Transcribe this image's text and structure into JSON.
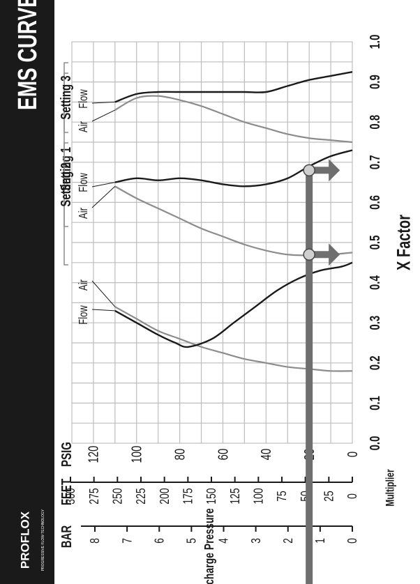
{
  "header": {
    "title": "EMS CURVE",
    "logo": "PROFLOX",
    "logo_tagline": "PROGRESSIVE FLOW TECHNOLOGY"
  },
  "colors": {
    "header_bg": "#1a1a1a",
    "flow_line": "#1a1a1a",
    "air_line": "#8c8c8c",
    "indicator": "#6f6f6f",
    "grid": "#bdbdbd",
    "marker_fill": "#cfcfcf"
  },
  "labels": {
    "x_axis": "X Factor",
    "y_axis": "Discharge Pressure",
    "multiplier": "Multiplier",
    "bar": "BAR",
    "feet": "FEET",
    "psig": "PSIG"
  },
  "chart_data": {
    "type": "line",
    "title": "EMS CURVE",
    "xlabel": "X Factor",
    "ylabel": "Discharge Pressure",
    "xlim": [
      0,
      1.0
    ],
    "ylim": [
      0,
      120
    ],
    "grid": true,
    "x_ticks": [
      "0.0",
      "0.1",
      "0.2",
      "0.3",
      "0.4",
      "0.5",
      "0.6",
      "0.7",
      "0.8",
      "0.9",
      "1.0"
    ],
    "psig_ticks": [
      "0",
      "20",
      "40",
      "60",
      "80",
      "100",
      "120"
    ],
    "feet_ticks": [
      "0",
      "25",
      "50",
      "75",
      "100",
      "125",
      "150",
      "175",
      "200",
      "225",
      "250",
      "275",
      "300"
    ],
    "bar_ticks": [
      "0",
      "1",
      "2",
      "3",
      "4",
      "5",
      "6",
      "7",
      "8"
    ],
    "settings": [
      {
        "name": "Setting 1",
        "flow_label": "Flow",
        "air_label": "Air",
        "flow": [
          [
            0.33,
            110
          ],
          [
            0.3,
            100
          ],
          [
            0.27,
            90
          ],
          [
            0.25,
            82
          ],
          [
            0.24,
            76
          ],
          [
            0.26,
            65
          ],
          [
            0.3,
            55
          ],
          [
            0.34,
            45
          ],
          [
            0.38,
            35
          ],
          [
            0.41,
            25
          ],
          [
            0.43,
            15
          ],
          [
            0.44,
            5
          ],
          [
            0.45,
            0
          ]
        ],
        "air": [
          [
            0.34,
            110
          ],
          [
            0.31,
            100
          ],
          [
            0.28,
            90
          ],
          [
            0.26,
            80
          ],
          [
            0.24,
            70
          ],
          [
            0.225,
            60
          ],
          [
            0.21,
            50
          ],
          [
            0.2,
            40
          ],
          [
            0.19,
            30
          ],
          [
            0.185,
            20
          ],
          [
            0.18,
            10
          ],
          [
            0.18,
            0
          ]
        ]
      },
      {
        "name": "Setting 2",
        "flow_label": "Flow",
        "air_label": "Air",
        "flow": [
          [
            0.65,
            110
          ],
          [
            0.66,
            100
          ],
          [
            0.655,
            90
          ],
          [
            0.66,
            80
          ],
          [
            0.655,
            70
          ],
          [
            0.645,
            60
          ],
          [
            0.64,
            50
          ],
          [
            0.645,
            40
          ],
          [
            0.66,
            30
          ],
          [
            0.69,
            20
          ],
          [
            0.715,
            10
          ],
          [
            0.73,
            0
          ]
        ],
        "air": [
          [
            0.64,
            110
          ],
          [
            0.61,
            100
          ],
          [
            0.585,
            90
          ],
          [
            0.56,
            80
          ],
          [
            0.535,
            70
          ],
          [
            0.515,
            60
          ],
          [
            0.495,
            50
          ],
          [
            0.48,
            40
          ],
          [
            0.47,
            30
          ],
          [
            0.468,
            20
          ],
          [
            0.47,
            10
          ],
          [
            0.475,
            0
          ]
        ]
      },
      {
        "name": "Setting 3",
        "flow_label": "Flow",
        "air_label": "Air",
        "flow": [
          [
            0.85,
            110
          ],
          [
            0.87,
            100
          ],
          [
            0.875,
            90
          ],
          [
            0.875,
            80
          ],
          [
            0.875,
            70
          ],
          [
            0.875,
            60
          ],
          [
            0.875,
            50
          ],
          [
            0.875,
            40
          ],
          [
            0.89,
            30
          ],
          [
            0.905,
            20
          ],
          [
            0.915,
            10
          ],
          [
            0.925,
            0
          ]
        ],
        "air": [
          [
            0.83,
            110
          ],
          [
            0.86,
            100
          ],
          [
            0.865,
            90
          ],
          [
            0.855,
            80
          ],
          [
            0.84,
            70
          ],
          [
            0.82,
            60
          ],
          [
            0.8,
            50
          ],
          [
            0.785,
            40
          ],
          [
            0.77,
            30
          ],
          [
            0.76,
            20
          ],
          [
            0.755,
            10
          ],
          [
            0.75,
            0
          ]
        ]
      }
    ],
    "reading": {
      "pressure_psig": 20,
      "x_markers": [
        0.47,
        0.68
      ]
    }
  }
}
